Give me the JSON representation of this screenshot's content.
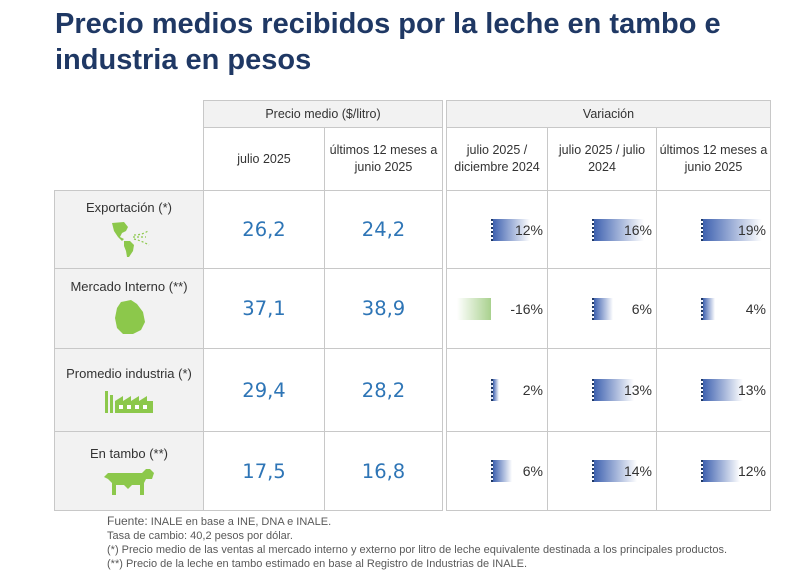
{
  "title": "Precio medios recibidos por la leche en tambo e industria en pesos",
  "header": {
    "group_price": "Precio medio ($/litro)",
    "group_variation": "Variación",
    "col_jul2025": "julio 2025",
    "col_last12": "últimos 12 meses a junio 2025",
    "col_var_dec": "julio 2025 / diciembre 2024",
    "col_var_yoy": "julio 2025 / julio 2024",
    "col_var_12m": "últimos 12 meses a junio 2025"
  },
  "rows": [
    {
      "label": "Exportación (*)",
      "icon": "americas-map-icon",
      "jul2025": "26,2",
      "last12": "24,2",
      "v1": "12%",
      "v1_value": 12,
      "v2": "16%",
      "v2_value": 16,
      "v3": "19%",
      "v3_value": 19
    },
    {
      "label": "Mercado Interno (**)",
      "icon": "uruguay-map-icon",
      "jul2025": "37,1",
      "last12": "38,9",
      "v1": "-16%",
      "v1_value": -16,
      "v2": "6%",
      "v2_value": 6,
      "v3": "4%",
      "v3_value": 4
    },
    {
      "label": "Promedio industria (*)",
      "icon": "factory-icon",
      "jul2025": "29,4",
      "last12": "28,2",
      "v1": "2%",
      "v1_value": 2,
      "v2": "13%",
      "v2_value": 13,
      "v3": "13%",
      "v3_value": 13
    },
    {
      "label": "En tambo (**)",
      "icon": "cow-icon",
      "jul2025": "17,5",
      "last12": "16,8",
      "v1": "6%",
      "v1_value": 6,
      "v2": "14%",
      "v2_value": 14,
      "v3": "12%",
      "v3_value": 12
    }
  ],
  "notes": {
    "source_label": "Fuente:",
    "source_text": " INALE en base a INE, DNA e INALE.",
    "exchange": "Tasa de cambio: 40,2 pesos por dólar.",
    "note1": "(*) Precio medio de las ventas al mercado interno y externo por litro de leche equivalente destinada a los principales productos.",
    "note2": "(**) Precio de la leche en tambo estimado en base al Registro de Industrias de INALE."
  },
  "colors": {
    "title": "#1f3864",
    "value": "#2e75b6",
    "positive_bar": "#3f62b0",
    "negative_bar": "#a9d18e",
    "icon": "#8cc84b"
  }
}
